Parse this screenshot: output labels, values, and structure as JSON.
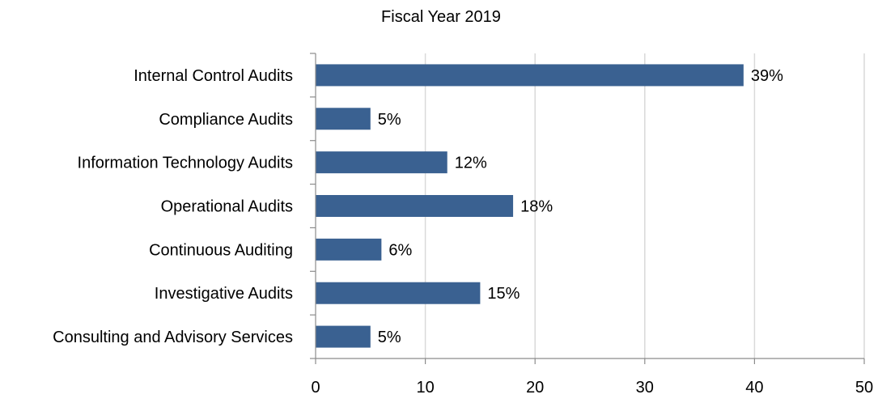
{
  "chart_data": {
    "type": "bar",
    "orientation": "horizontal",
    "title": "Fiscal Year 2019",
    "categories": [
      "Internal Control Audits",
      "Compliance Audits",
      "Information Technology Audits",
      "Operational Audits",
      "Continuous Auditing",
      "Investigative Audits",
      "Consulting and Advisory Services"
    ],
    "values": [
      39,
      5,
      12,
      18,
      6,
      15,
      5
    ],
    "data_labels": [
      "39%",
      "5%",
      "12%",
      "18%",
      "6%",
      "15%",
      "5%"
    ],
    "xlim": [
      0,
      50
    ],
    "x_ticks": [
      0,
      10,
      20,
      30,
      40,
      50
    ],
    "grid": "vertical",
    "legend": "none",
    "bar_color": "#3A6191"
  }
}
